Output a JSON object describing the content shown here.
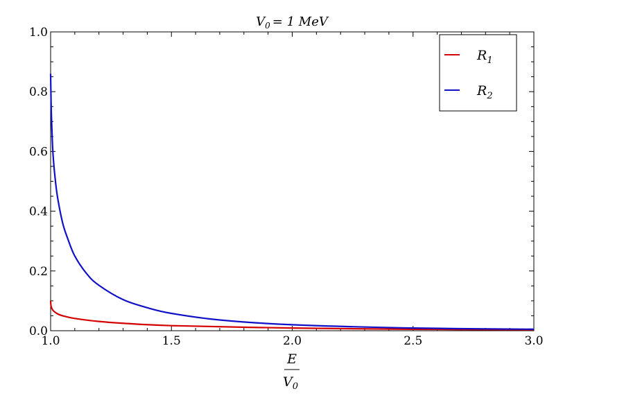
{
  "chart_data": {
    "type": "line",
    "title": {
      "main": "V",
      "sub": "0",
      "rest": "= 1 MeV"
    },
    "xlabel": {
      "numerator": "E",
      "denominator_main": "V",
      "denominator_sub": "0"
    },
    "ylabel": "",
    "xlim": [
      1.0,
      3.0
    ],
    "ylim": [
      0.0,
      1.0
    ],
    "x_ticks": [
      "1.0",
      "1.5",
      "2.0",
      "2.5",
      "3.0"
    ],
    "y_ticks": [
      "0.0",
      "0.2",
      "0.4",
      "0.6",
      "0.8",
      "1.0"
    ],
    "x_tick_values": [
      1.0,
      1.5,
      2.0,
      2.5,
      3.0
    ],
    "y_tick_values": [
      0.0,
      0.2,
      0.4,
      0.6,
      0.8,
      1.0
    ],
    "legend_position": "top-right",
    "series": [
      {
        "name": "R",
        "name_sub": "1",
        "color": "#d40000",
        "x": [
          1.0,
          1.002,
          1.01,
          1.03,
          1.05,
          1.1,
          1.2,
          1.3,
          1.5,
          2.0,
          2.5,
          3.0
        ],
        "y": [
          0.1,
          0.082,
          0.068,
          0.056,
          0.05,
          0.041,
          0.031,
          0.025,
          0.017,
          0.009,
          0.005,
          0.003
        ]
      },
      {
        "name": "R",
        "name_sub": "2",
        "color": "#1010c8",
        "x": [
          1.0,
          1.002,
          1.005,
          1.01,
          1.02,
          1.03,
          1.05,
          1.07,
          1.1,
          1.15,
          1.2,
          1.3,
          1.4,
          1.5,
          1.7,
          2.0,
          2.5,
          3.0
        ],
        "y": [
          0.86,
          0.76,
          0.68,
          0.59,
          0.5,
          0.44,
          0.36,
          0.31,
          0.25,
          0.19,
          0.152,
          0.104,
          0.077,
          0.058,
          0.036,
          0.02,
          0.009,
          0.005
        ]
      }
    ]
  }
}
